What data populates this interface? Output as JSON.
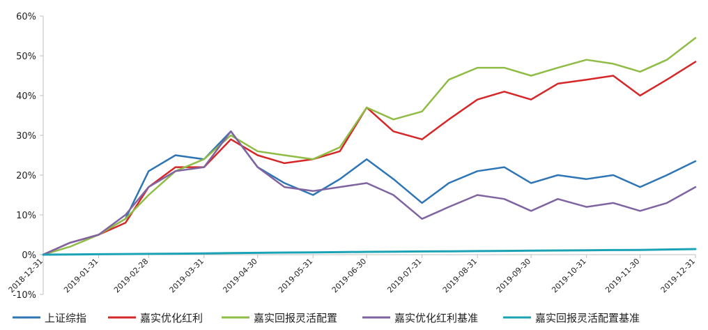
{
  "chart_data": {
    "type": "line",
    "title": "",
    "xlabel": "",
    "ylabel": "",
    "ylim": [
      -10,
      60
    ],
    "yticks": [
      -10,
      0,
      10,
      20,
      30,
      40,
      50,
      60
    ],
    "ytick_labels": [
      "-10%",
      "0%",
      "10%",
      "20%",
      "30%",
      "40%",
      "50%",
      "60%"
    ],
    "x_ticks": [
      "2018-12-31",
      "2019-01-31",
      "2019-02-28",
      "2019-03-31",
      "2019-04-30",
      "2019-05-31",
      "2019-06-30",
      "2019-07-31",
      "2019-08-31",
      "2019-09-30",
      "2019-10-31",
      "2019-11-30",
      "2019-12-31"
    ],
    "grid": false,
    "legend_position": "bottom",
    "x": [
      "2018-12-31",
      "2019-01-15",
      "2019-01-31",
      "2019-02-15",
      "2019-02-28",
      "2019-03-15",
      "2019-03-31",
      "2019-04-15",
      "2019-04-30",
      "2019-05-15",
      "2019-05-31",
      "2019-06-15",
      "2019-06-30",
      "2019-07-15",
      "2019-07-31",
      "2019-08-15",
      "2019-08-31",
      "2019-09-15",
      "2019-09-30",
      "2019-10-15",
      "2019-10-31",
      "2019-11-15",
      "2019-11-30",
      "2019-12-15",
      "2019-12-31"
    ],
    "series": [
      {
        "name": "上证综指",
        "color": "#2e75b6",
        "values": [
          0,
          3,
          5,
          9,
          21,
          25,
          24,
          31,
          22,
          18,
          15,
          19,
          24,
          19,
          13,
          18,
          21,
          22,
          18,
          20,
          19,
          20,
          17,
          20,
          23.5
        ]
      },
      {
        "name": "嘉实优化红利",
        "color": "#d62728",
        "values": [
          0,
          3,
          5,
          8,
          17,
          22,
          22,
          29,
          25,
          23,
          24,
          26,
          37,
          31,
          29,
          34,
          39,
          41,
          39,
          43,
          44,
          45,
          40,
          44,
          48.5
        ]
      },
      {
        "name": "嘉实回报灵活配置",
        "color": "#8fbc44",
        "values": [
          0,
          2,
          5,
          9,
          15,
          21,
          24,
          30,
          26,
          25,
          24,
          27,
          37,
          34,
          36,
          44,
          47,
          47,
          45,
          47,
          49,
          48,
          46,
          49,
          54.5
        ]
      },
      {
        "name": "嘉实优化红利基准",
        "color": "#8064a2",
        "values": [
          0,
          3,
          5,
          10,
          17,
          21,
          22,
          31,
          22,
          17,
          16,
          17,
          18,
          15,
          9,
          12,
          15,
          14,
          11,
          14,
          12,
          13,
          11,
          13,
          17
        ]
      },
      {
        "name": "嘉实回报灵活配置基准",
        "color": "#1ba3b5",
        "values": [
          0,
          0.05,
          0.1,
          0.15,
          0.2,
          0.25,
          0.3,
          0.38,
          0.45,
          0.52,
          0.58,
          0.63,
          0.7,
          0.75,
          0.8,
          0.85,
          0.9,
          0.95,
          1.0,
          1.05,
          1.1,
          1.15,
          1.2,
          1.3,
          1.4
        ]
      }
    ]
  }
}
